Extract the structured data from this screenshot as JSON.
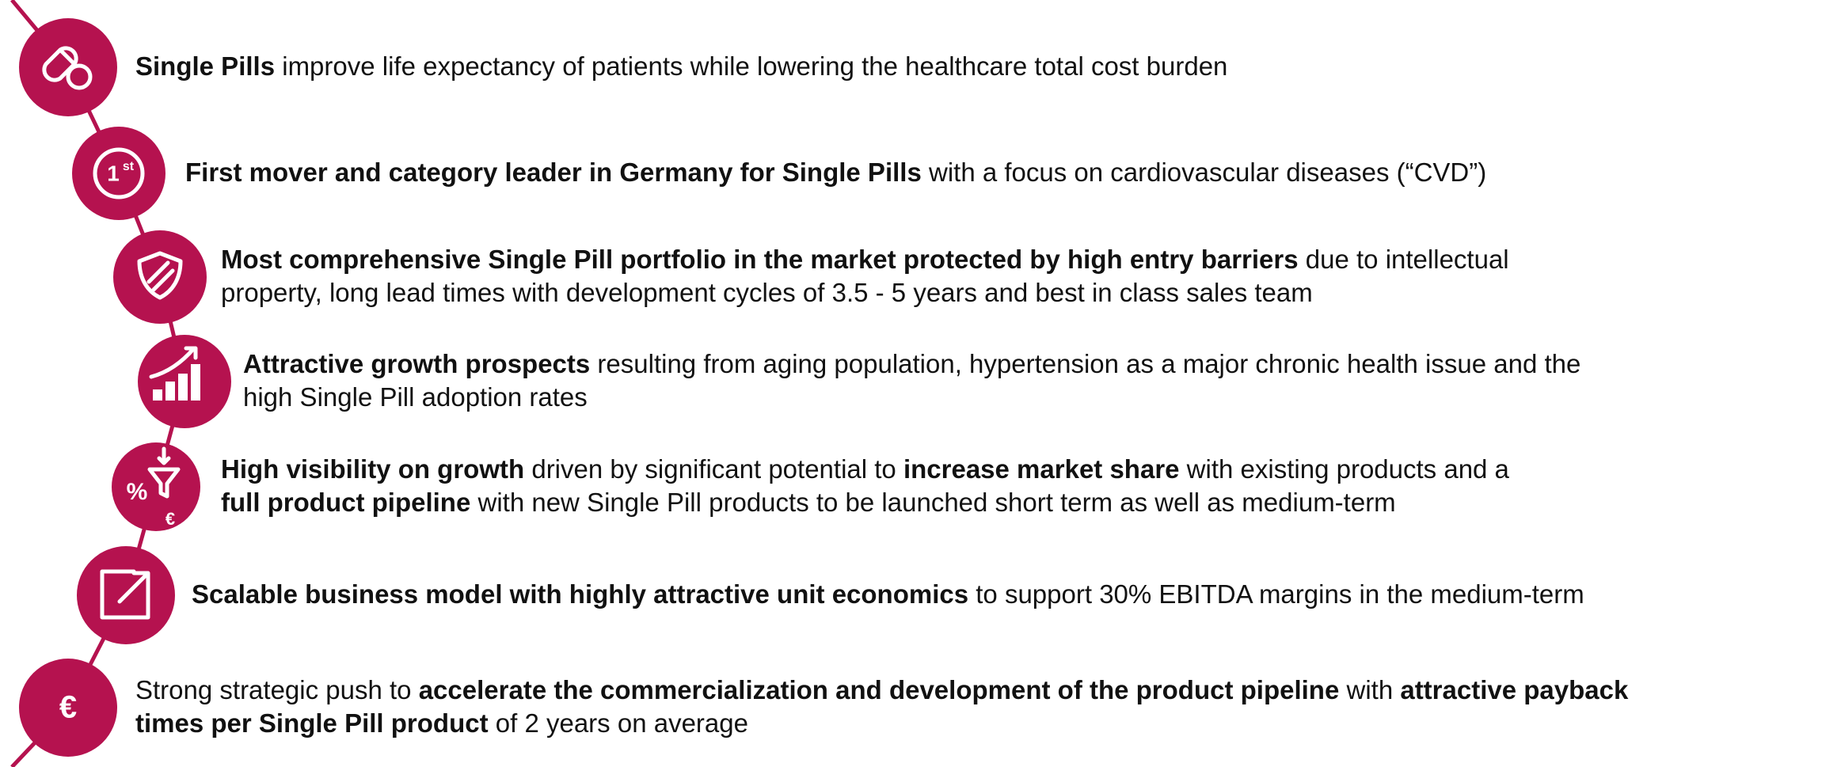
{
  "items": [
    {
      "icon_text": [],
      "lines": [
        [
          {
            "text": "Single Pills",
            "bold": true
          },
          {
            "text": " improve life expectancy of patients while lowering the healthcare total cost burden",
            "bold": false
          }
        ]
      ]
    },
    {
      "icon_text": [
        "1",
        "st"
      ],
      "lines": [
        [
          {
            "text": "First mover and category leader in Germany for Single Pills",
            "bold": true
          },
          {
            "text": " with a focus on cardiovascular diseases (“CVD”)",
            "bold": false
          }
        ]
      ]
    },
    {
      "icon_text": [],
      "lines": [
        [
          {
            "text": "Most comprehensive Single Pill portfolio in the market protected by high entry barriers",
            "bold": true
          },
          {
            "text": " due to intellectual",
            "bold": false
          }
        ],
        [
          {
            "text": "property, long lead times with development cycles of 3.5 - 5 years and best in class sales team",
            "bold": false
          }
        ]
      ]
    },
    {
      "icon_text": [],
      "lines": [
        [
          {
            "text": "Attractive growth prospects",
            "bold": true
          },
          {
            "text": " resulting from aging population, hypertension as a major chronic health issue and the",
            "bold": false
          }
        ],
        [
          {
            "text": "high Single Pill adoption rates",
            "bold": false
          }
        ]
      ]
    },
    {
      "icon_text": [
        "%",
        "€"
      ],
      "lines": [
        [
          {
            "text": "High visibility on growth",
            "bold": true
          },
          {
            "text": " driven by significant potential to ",
            "bold": false
          },
          {
            "text": "increase market share",
            "bold": true
          },
          {
            "text": " with existing products and a",
            "bold": false
          }
        ],
        [
          {
            "text": "full product pipeline",
            "bold": true
          },
          {
            "text": " with new Single Pill products to be launched short term as well as medium-term",
            "bold": false
          }
        ]
      ]
    },
    {
      "icon_text": [],
      "lines": [
        [
          {
            "text": "Scalable business model with highly attractive unit economics",
            "bold": true
          },
          {
            "text": " to support 30% EBITDA margins in the medium-term",
            "bold": false
          }
        ]
      ]
    },
    {
      "icon_text": [
        "€"
      ],
      "lines": [
        [
          {
            "text": "Strong strategic push to ",
            "bold": false
          },
          {
            "text": "accelerate the commercialization and development of the product pipeline",
            "bold": true
          },
          {
            "text": " with ",
            "bold": false
          },
          {
            "text": "attractive payback",
            "bold": true
          }
        ],
        [
          {
            "text": "times per Single Pill product",
            "bold": true
          },
          {
            "text": " of 2 years on average",
            "bold": false
          }
        ]
      ]
    }
  ]
}
